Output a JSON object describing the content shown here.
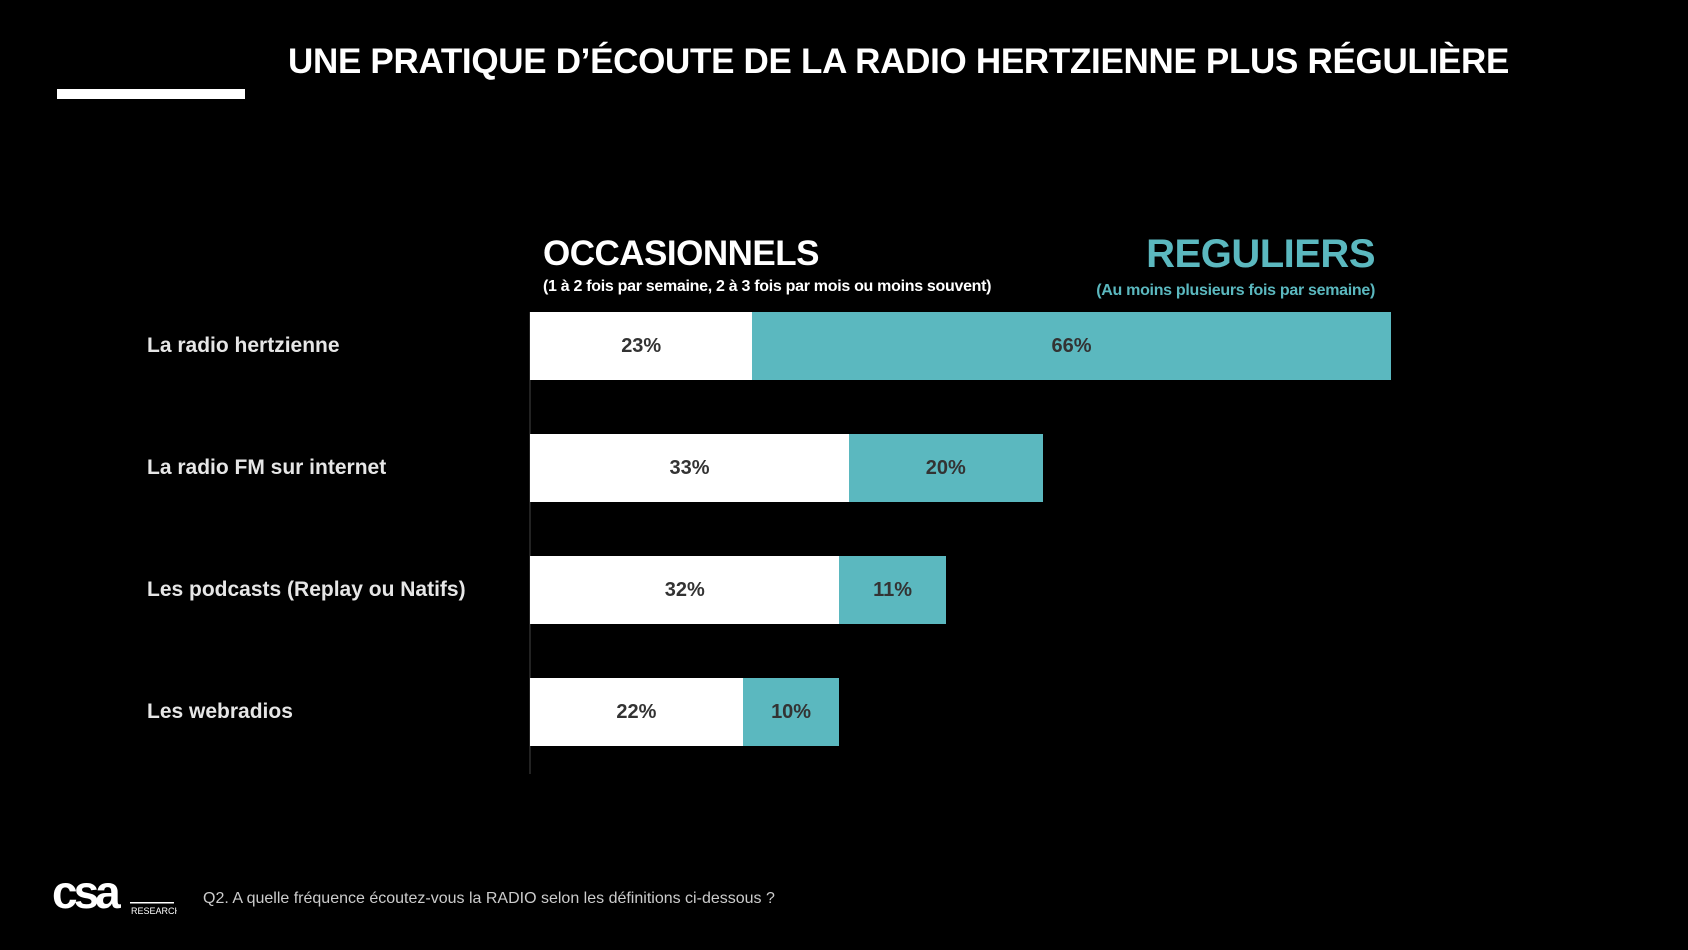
{
  "title": "UNE PRATIQUE D’ÉCOUTE DE LA RADIO HERTZIENNE PLUS RÉGULIÈRE",
  "chart_data": {
    "type": "bar",
    "orientation": "horizontal",
    "stacked": true,
    "categories": [
      "La radio hertzienne",
      "La radio FM sur internet",
      "Les podcasts (Replay ou Natifs)",
      "Les webradios"
    ],
    "series": [
      {
        "name": "OCCASIONNELS",
        "subtitle": "(1 à 2 fois par semaine, 2 à 3 fois par mois ou moins souvent)",
        "color": "#ffffff",
        "values": [
          23,
          33,
          32,
          22
        ],
        "labels": [
          "23%",
          "33%",
          "32%",
          "22%"
        ]
      },
      {
        "name": "REGULIERS",
        "subtitle": "(Au moins plusieurs fois par semaine)",
        "color": "#5bb8bf",
        "values": [
          66,
          20,
          11,
          10
        ],
        "labels": [
          "66%",
          "20%",
          "11%",
          "10%"
        ]
      }
    ],
    "unit": "%",
    "grid": false
  },
  "footer": {
    "logo_text": "csa",
    "logo_sub": "RESEARCH",
    "question": "Q2. A quelle fréquence écoutez-vous la RADIO selon les définitions ci-dessous ?"
  }
}
